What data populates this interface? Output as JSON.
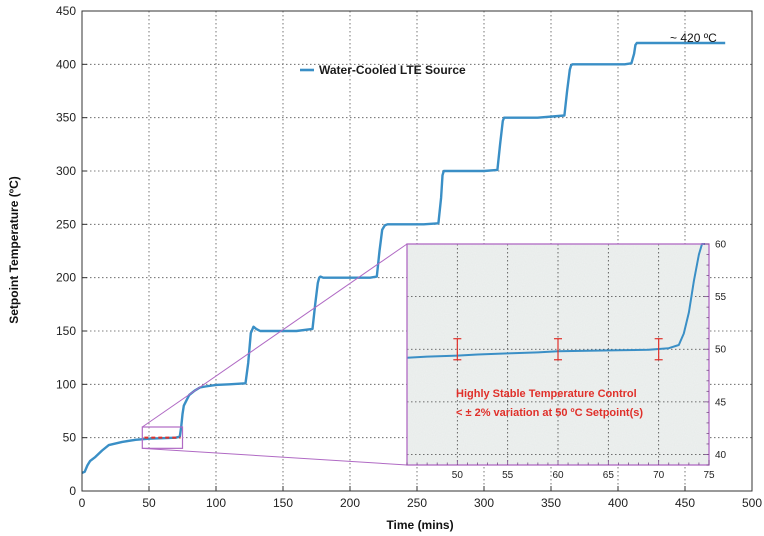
{
  "chart_data": {
    "type": "line",
    "title": "",
    "xlabel": "Time (mins)",
    "ylabel": "Setpoint Temperature (ºC)",
    "xlim": [
      0,
      500
    ],
    "ylim": [
      0,
      450
    ],
    "xticks": [
      0,
      50,
      100,
      150,
      200,
      250,
      300,
      350,
      400,
      450,
      500
    ],
    "yticks": [
      0,
      50,
      100,
      150,
      200,
      250,
      300,
      350,
      400,
      450
    ],
    "grid": true,
    "legend_position": "top-center",
    "colors": {
      "series": "#3a8fc6",
      "inset_box": "#b06ac4",
      "annotation": "#e0302a",
      "inset_bg": "#eef1f0"
    },
    "series": [
      {
        "name": "Water-Cooled LTE Source",
        "x": [
          0,
          2,
          4,
          6,
          10,
          15,
          20,
          30,
          40,
          50,
          60,
          70,
          73,
          74,
          75,
          76,
          78,
          80,
          84,
          88,
          92,
          100,
          110,
          122,
          124,
          126,
          128,
          130,
          133,
          140,
          150,
          160,
          172,
          174,
          176,
          177,
          178,
          180,
          190,
          200,
          215,
          220,
          222,
          224,
          226,
          228,
          240,
          255,
          266,
          268,
          269,
          270,
          280,
          300,
          310,
          312,
          314,
          315,
          320,
          340,
          360,
          362,
          364,
          365,
          366,
          380,
          405,
          410,
          412,
          413,
          414,
          420,
          440,
          460,
          480
        ],
        "y": [
          17,
          18,
          24,
          28,
          32,
          38,
          43,
          46,
          48,
          49,
          49.5,
          50,
          51,
          60,
          72,
          80,
          85,
          90,
          94,
          97,
          98,
          99.5,
          100,
          101,
          120,
          148,
          154,
          152,
          150,
          150,
          150,
          150,
          152,
          175,
          195,
          200,
          201,
          200,
          200,
          200,
          200,
          201,
          225,
          245,
          249,
          250,
          250,
          250,
          251,
          275,
          296,
          300,
          300,
          300,
          301,
          325,
          347,
          350,
          350,
          350,
          352,
          375,
          395,
          399,
          400,
          400,
          400,
          401,
          410,
          418,
          420,
          420,
          420,
          420,
          420
        ]
      }
    ],
    "annotations": [
      "~ 420 ºC"
    ],
    "inset": {
      "type": "line",
      "xlim": [
        45,
        75
      ],
      "ylim": [
        39,
        60
      ],
      "xticks": [
        50,
        55,
        60,
        65,
        70,
        75
      ],
      "yticks": [
        40,
        45,
        50,
        55,
        60
      ],
      "source_region_x": [
        45,
        75
      ],
      "source_region_y": [
        40,
        60
      ],
      "x": [
        45,
        47,
        50,
        52,
        55,
        58,
        60,
        63,
        66,
        69,
        71,
        72,
        72.5,
        73,
        73.5,
        74,
        74.3,
        74.6
      ],
      "y": [
        49.2,
        49.3,
        49.4,
        49.5,
        49.6,
        49.7,
        49.8,
        49.85,
        49.9,
        49.95,
        50.1,
        50.4,
        51.5,
        53.5,
        56.5,
        59,
        60.5,
        61
      ],
      "error_bars": [
        {
          "x": 50,
          "y": 50.0,
          "err": 1.0
        },
        {
          "x": 60,
          "y": 50.0,
          "err": 1.0
        },
        {
          "x": 70,
          "y": 50.0,
          "err": 1.0
        }
      ],
      "note_lines": [
        "Highly Stable Temperature Control",
        "< ± 2% variation at 50 ºC Setpoint(s)"
      ]
    }
  }
}
